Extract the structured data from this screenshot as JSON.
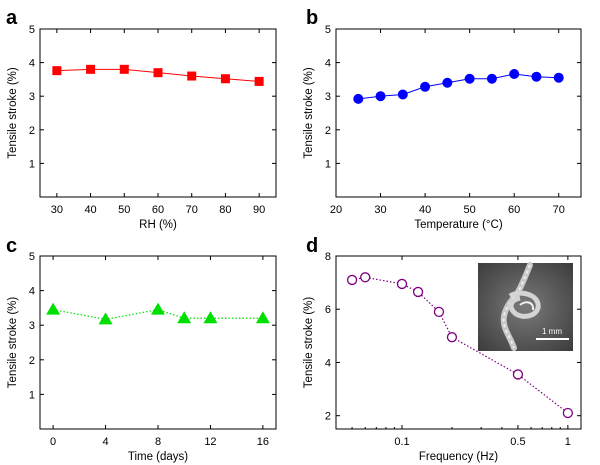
{
  "chart_data": [
    {
      "panel": "a",
      "type": "line",
      "xlabel": "RH (%)",
      "ylabel": "Tensile stroke (%)",
      "xlim": [
        25,
        95
      ],
      "ylim": [
        0,
        5
      ],
      "xticks": [
        30,
        40,
        50,
        60,
        70,
        80,
        90
      ],
      "yticks": [
        1,
        2,
        3,
        4,
        5
      ],
      "marker": "square",
      "color": "#ff0000",
      "line_style": "solid",
      "series": [
        {
          "x": [
            30,
            40,
            50,
            60,
            70,
            80,
            90
          ],
          "y": [
            3.76,
            3.8,
            3.8,
            3.7,
            3.6,
            3.52,
            3.44
          ]
        }
      ]
    },
    {
      "panel": "b",
      "type": "line",
      "xlabel": "Temperature (°C)",
      "ylabel": "Tensile stroke (%)",
      "xlim": [
        20,
        75
      ],
      "ylim": [
        0,
        5
      ],
      "xticks": [
        20,
        30,
        40,
        50,
        60,
        70
      ],
      "yticks": [
        1,
        2,
        3,
        4,
        5
      ],
      "marker": "circle",
      "color": "#0000ff",
      "line_style": "solid",
      "series": [
        {
          "x": [
            25,
            30,
            35,
            40,
            45,
            50,
            55,
            60,
            65,
            70
          ],
          "y": [
            2.92,
            3.0,
            3.05,
            3.28,
            3.4,
            3.52,
            3.52,
            3.66,
            3.58,
            3.55
          ]
        }
      ]
    },
    {
      "panel": "c",
      "type": "line",
      "xlabel": "Time (days)",
      "ylabel": "Tensile stroke (%)",
      "xlim": [
        -1,
        17
      ],
      "ylim": [
        0,
        5
      ],
      "xticks": [
        0,
        4,
        8,
        12,
        16
      ],
      "yticks": [
        1,
        2,
        3,
        4,
        5
      ],
      "marker": "triangle",
      "color": "#00e000",
      "line_style": "dotted",
      "series": [
        {
          "x": [
            0,
            4,
            8,
            10,
            12,
            16
          ],
          "y": [
            3.45,
            3.17,
            3.45,
            3.2,
            3.2,
            3.2
          ]
        }
      ]
    },
    {
      "panel": "d",
      "type": "line",
      "x_scale": "log",
      "xlabel": "Frequency (Hz)",
      "ylabel": "Tensile stroke (%)",
      "xlim": [
        0.04,
        1.2
      ],
      "ylim": [
        1.5,
        8
      ],
      "xticks": [
        0.1,
        0.5,
        1
      ],
      "xtick_labels": [
        "0.1",
        "0.5",
        "1"
      ],
      "yticks": [
        2,
        4,
        6,
        8
      ],
      "marker": "open-circle",
      "color": "#800080",
      "line_style": "dotted",
      "inset_scale_label": "1 mm",
      "series": [
        {
          "x": [
            0.05,
            0.06,
            0.1,
            0.125,
            0.167,
            0.2,
            0.5,
            1
          ],
          "y": [
            7.1,
            7.2,
            6.95,
            6.65,
            5.9,
            4.95,
            3.55,
            2.1
          ]
        }
      ]
    }
  ]
}
